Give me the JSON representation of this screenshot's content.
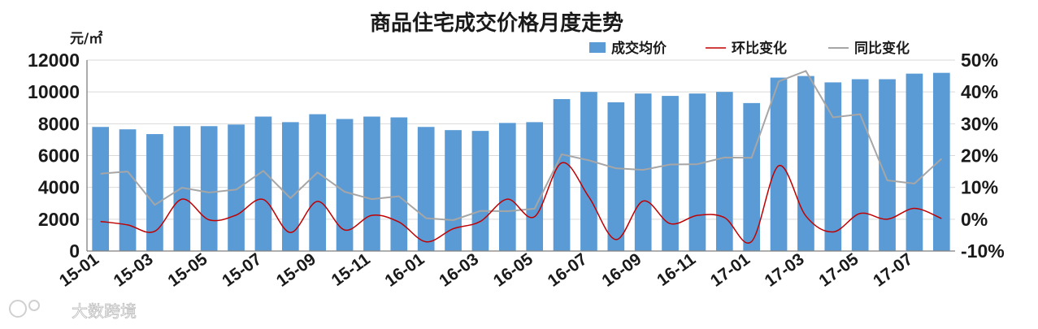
{
  "chart_data": {
    "type": "bar+line",
    "title": "商品住宅成交价格月度走势",
    "y_left_unit": "元/㎡",
    "y_left": {
      "lim": [
        0,
        12000
      ],
      "ticks": [
        "0",
        "2000",
        "4000",
        "6000",
        "8000",
        "10000",
        "12000"
      ]
    },
    "y_right": {
      "lim": [
        -10,
        50
      ],
      "ticks": [
        "-10%",
        "0%",
        "10%",
        "20%",
        "30%",
        "40%",
        "50%"
      ]
    },
    "categories": [
      "15-01",
      "15-02",
      "15-03",
      "15-04",
      "15-05",
      "15-06",
      "15-07",
      "15-08",
      "15-09",
      "15-10",
      "15-11",
      "15-12",
      "16-01",
      "16-02",
      "16-03",
      "16-04",
      "16-05",
      "16-06",
      "16-07",
      "16-08",
      "16-09",
      "16-10",
      "16-11",
      "16-12",
      "17-01",
      "17-02",
      "17-03",
      "17-04",
      "17-05",
      "17-06",
      "17-07",
      "17-08"
    ],
    "x_tick_labels": [
      "15-01",
      "15-03",
      "15-05",
      "15-07",
      "15-09",
      "15-11",
      "16-01",
      "16-03",
      "16-05",
      "16-07",
      "16-09",
      "16-11",
      "17-01",
      "17-03",
      "17-05",
      "17-07"
    ],
    "legend_position": "top-right",
    "series": [
      {
        "name": "成交均价",
        "type": "bar",
        "axis": "left",
        "color": "#5b9bd5",
        "values": [
          7800,
          7650,
          7350,
          7850,
          7850,
          7950,
          8450,
          8100,
          8600,
          8300,
          8450,
          8400,
          7800,
          7600,
          7550,
          8050,
          8100,
          9550,
          10000,
          9350,
          9900,
          9750,
          9900,
          10000,
          9300,
          10900,
          11000,
          10600,
          10800,
          10800,
          11150,
          11200
        ]
      },
      {
        "name": "环比变化",
        "type": "line",
        "axis": "right",
        "color": "#c00000",
        "smooth": true,
        "values": [
          -0.7,
          -1.8,
          -3.8,
          6.3,
          -0.2,
          1.3,
          6.2,
          -4.2,
          5.6,
          -3.4,
          1.2,
          -0.9,
          -7.1,
          -3.0,
          -0.7,
          6.3,
          0.8,
          17.7,
          7.0,
          -6.4,
          5.7,
          -1.4,
          1.2,
          0.5,
          -7.0,
          16.8,
          1.0,
          -4.0,
          1.8,
          0.0,
          3.4,
          0.2
        ]
      },
      {
        "name": "同比变化",
        "type": "line",
        "axis": "right",
        "color": "#a6a6a6",
        "smooth": false,
        "values": [
          14.3,
          15.0,
          4.5,
          9.9,
          8.4,
          9.3,
          15.2,
          6.6,
          14.7,
          8.6,
          6.3,
          7.2,
          0.3,
          -0.3,
          2.6,
          2.5,
          3.3,
          20.4,
          18.5,
          16.0,
          15.5,
          17.2,
          17.3,
          19.4,
          19.3,
          43.3,
          46.6,
          32.0,
          33.0,
          12.2,
          11.2,
          19.0
        ]
      }
    ]
  },
  "watermark": "大数跨境"
}
